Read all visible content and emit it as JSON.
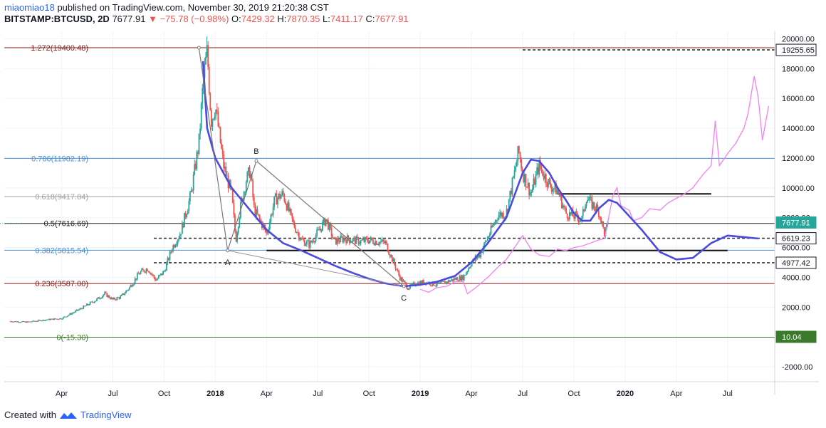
{
  "header": {
    "author": "miaomiao18",
    "published": "published on TradingView.com, November 30, 2019 21:20:38 CST",
    "symbol": "BITSTAMP:BTCUSD, 2D",
    "last": "7677.91",
    "change": "−75.78 (−0.98%)",
    "open_label": "O:",
    "open": "7429.32",
    "high_label": "H:",
    "high": "7870.35",
    "low_label": "L:",
    "low": "7411.17",
    "close_label": "C:",
    "close": "7677.91"
  },
  "footer": {
    "created_with": "Created with",
    "brand": "TradingView"
  },
  "colors": {
    "up": "#26a69a",
    "down": "#ef5350",
    "ma": "#4a4adf",
    "fractal": "#f77ff0",
    "fib_1272": "#8b1a1a",
    "fib_0786": "#4a90d9",
    "fib_0618": "#a0a0a0",
    "fib_05": "#222222",
    "fib_0382": "#4a90d9",
    "fib_0236": "#8b1a1a",
    "fib_0": "#3b7a2a"
  },
  "chart_data": {
    "type": "line",
    "title": "",
    "xlabel": "",
    "ylabel": "",
    "ylim": [
      -3000,
      20500
    ],
    "y_ticks": [
      -2000,
      2000,
      4000,
      6000,
      8000,
      10000,
      12000,
      14000,
      16000,
      18000,
      20000
    ],
    "y_tick_labels": [
      "-2000.00",
      "2000.00",
      "4000.00",
      "6000.00",
      "8000.00",
      "10000.00",
      "12000.00",
      "14000.00",
      "16000.00",
      "18000.00",
      "20000.00"
    ],
    "x_ticks": [
      {
        "label": "Apr",
        "t": 2017.25,
        "bold": false
      },
      {
        "label": "Jul",
        "t": 2017.5,
        "bold": false
      },
      {
        "label": "Oct",
        "t": 2017.75,
        "bold": false
      },
      {
        "label": "2018",
        "t": 2018.0,
        "bold": true
      },
      {
        "label": "Apr",
        "t": 2018.25,
        "bold": false
      },
      {
        "label": "Jul",
        "t": 2018.5,
        "bold": false
      },
      {
        "label": "Oct",
        "t": 2018.75,
        "bold": false
      },
      {
        "label": "2019",
        "t": 2019.0,
        "bold": true
      },
      {
        "label": "Apr",
        "t": 2019.25,
        "bold": false
      },
      {
        "label": "Jul",
        "t": 2019.5,
        "bold": false
      },
      {
        "label": "Oct",
        "t": 2019.75,
        "bold": false
      },
      {
        "label": "2020",
        "t": 2020.0,
        "bold": true
      },
      {
        "label": "Apr",
        "t": 2020.25,
        "bold": false
      },
      {
        "label": "Jul",
        "t": 2020.5,
        "bold": false
      }
    ],
    "price_series": [
      [
        2017.0,
        1050
      ],
      [
        2017.08,
        1000
      ],
      [
        2017.17,
        1150
      ],
      [
        2017.25,
        1250
      ],
      [
        2017.33,
        1800
      ],
      [
        2017.42,
        2500
      ],
      [
        2017.46,
        2900
      ],
      [
        2017.5,
        2500
      ],
      [
        2017.54,
        2700
      ],
      [
        2017.58,
        3300
      ],
      [
        2017.63,
        4300
      ],
      [
        2017.67,
        4600
      ],
      [
        2017.71,
        3800
      ],
      [
        2017.75,
        4400
      ],
      [
        2017.79,
        6000
      ],
      [
        2017.83,
        7000
      ],
      [
        2017.88,
        9500
      ],
      [
        2017.92,
        13000
      ],
      [
        2017.94,
        17000
      ],
      [
        2017.96,
        19200
      ],
      [
        2017.98,
        14500
      ],
      [
        2018.0,
        15500
      ],
      [
        2018.04,
        11500
      ],
      [
        2018.08,
        9500
      ],
      [
        2018.1,
        6500
      ],
      [
        2018.12,
        8500
      ],
      [
        2018.15,
        10500
      ],
      [
        2018.17,
        11200
      ],
      [
        2018.19,
        8500
      ],
      [
        2018.23,
        7500
      ],
      [
        2018.25,
        6900
      ],
      [
        2018.29,
        9200
      ],
      [
        2018.33,
        9600
      ],
      [
        2018.38,
        7600
      ],
      [
        2018.42,
        6500
      ],
      [
        2018.46,
        6200
      ],
      [
        2018.5,
        7000
      ],
      [
        2018.54,
        7900
      ],
      [
        2018.58,
        6400
      ],
      [
        2018.63,
        6600
      ],
      [
        2018.67,
        6500
      ],
      [
        2018.71,
        6400
      ],
      [
        2018.75,
        6500
      ],
      [
        2018.79,
        6400
      ],
      [
        2018.83,
        6300
      ],
      [
        2018.87,
        5000
      ],
      [
        2018.9,
        4000
      ],
      [
        2018.94,
        3300
      ],
      [
        2018.98,
        3600
      ],
      [
        2019.02,
        3700
      ],
      [
        2019.08,
        3500
      ],
      [
        2019.13,
        3700
      ],
      [
        2019.17,
        3900
      ],
      [
        2019.21,
        4000
      ],
      [
        2019.25,
        5000
      ],
      [
        2019.29,
        5500
      ],
      [
        2019.33,
        6700
      ],
      [
        2019.38,
        8200
      ],
      [
        2019.42,
        8300
      ],
      [
        2019.46,
        11000
      ],
      [
        2019.48,
        12500
      ],
      [
        2019.5,
        11000
      ],
      [
        2019.54,
        9600
      ],
      [
        2019.58,
        11500
      ],
      [
        2019.63,
        10200
      ],
      [
        2019.67,
        9800
      ],
      [
        2019.71,
        8300
      ],
      [
        2019.75,
        8100
      ],
      [
        2019.79,
        7900
      ],
      [
        2019.81,
        9400
      ],
      [
        2019.83,
        9000
      ],
      [
        2019.87,
        8500
      ],
      [
        2019.9,
        6900
      ],
      [
        2019.92,
        7677
      ]
    ],
    "ma_series": [
      [
        2017.94,
        18500
      ],
      [
        2017.96,
        14000
      ],
      [
        2018.0,
        12000
      ],
      [
        2018.08,
        10000
      ],
      [
        2018.17,
        8500
      ],
      [
        2018.25,
        7200
      ],
      [
        2018.33,
        6300
      ],
      [
        2018.42,
        5800
      ],
      [
        2018.5,
        5300
      ],
      [
        2018.58,
        4800
      ],
      [
        2018.67,
        4300
      ],
      [
        2018.75,
        3900
      ],
      [
        2018.83,
        3600
      ],
      [
        2018.92,
        3400
      ],
      [
        2019.0,
        3500
      ],
      [
        2019.08,
        3700
      ],
      [
        2019.17,
        4100
      ],
      [
        2019.25,
        5000
      ],
      [
        2019.33,
        6300
      ],
      [
        2019.42,
        8000
      ],
      [
        2019.5,
        11000
      ],
      [
        2019.54,
        11900
      ],
      [
        2019.58,
        11800
      ],
      [
        2019.63,
        11000
      ],
      [
        2019.67,
        10000
      ],
      [
        2019.71,
        9200
      ],
      [
        2019.75,
        8300
      ],
      [
        2019.79,
        7800
      ],
      [
        2019.83,
        7800
      ],
      [
        2019.87,
        8600
      ],
      [
        2019.92,
        9200
      ],
      [
        2019.96,
        9000
      ],
      [
        2020.0,
        8400
      ],
      [
        2020.08,
        7200
      ],
      [
        2020.17,
        5700
      ],
      [
        2020.25,
        5200
      ],
      [
        2020.33,
        5300
      ],
      [
        2020.42,
        6300
      ],
      [
        2020.5,
        6800
      ],
      [
        2020.58,
        6700
      ],
      [
        2020.65,
        6600
      ]
    ],
    "fractal_series": [
      [
        2019.0,
        3200
      ],
      [
        2019.04,
        3000
      ],
      [
        2019.08,
        3300
      ],
      [
        2019.13,
        3400
      ],
      [
        2019.17,
        3700
      ],
      [
        2019.21,
        3700
      ],
      [
        2019.23,
        2900
      ],
      [
        2019.27,
        3300
      ],
      [
        2019.33,
        4000
      ],
      [
        2019.38,
        4700
      ],
      [
        2019.42,
        5200
      ],
      [
        2019.46,
        6000
      ],
      [
        2019.5,
        6800
      ],
      [
        2019.54,
        5900
      ],
      [
        2019.58,
        5500
      ],
      [
        2019.63,
        5400
      ],
      [
        2019.67,
        5900
      ],
      [
        2019.71,
        5800
      ],
      [
        2019.75,
        6000
      ],
      [
        2019.79,
        6100
      ],
      [
        2019.83,
        6300
      ],
      [
        2019.87,
        6500
      ],
      [
        2019.9,
        6600
      ],
      [
        2019.94,
        9500
      ],
      [
        2019.96,
        10000
      ],
      [
        2019.98,
        8800
      ],
      [
        2020.02,
        8500
      ],
      [
        2020.04,
        7800
      ],
      [
        2020.08,
        8000
      ],
      [
        2020.12,
        8600
      ],
      [
        2020.17,
        8500
      ],
      [
        2020.21,
        9000
      ],
      [
        2020.25,
        9300
      ],
      [
        2020.29,
        9600
      ],
      [
        2020.33,
        10000
      ],
      [
        2020.38,
        10900
      ],
      [
        2020.42,
        11500
      ],
      [
        2020.44,
        14500
      ],
      [
        2020.46,
        11500
      ],
      [
        2020.5,
        12300
      ],
      [
        2020.54,
        13000
      ],
      [
        2020.58,
        14000
      ],
      [
        2020.6,
        15000
      ],
      [
        2020.63,
        17500
      ],
      [
        2020.65,
        16000
      ],
      [
        2020.67,
        13200
      ],
      [
        2020.7,
        15500
      ]
    ],
    "fib_levels": [
      {
        "label": "1.272(19400.48)",
        "value": 19400.48,
        "color": "#8b1a1a"
      },
      {
        "label": "0.786(11982.19)",
        "value": 11982.19,
        "color": "#4a90d9"
      },
      {
        "label": "0.618(9417.84)",
        "value": 9417.84,
        "color": "#a0a0a0"
      },
      {
        "label": "0.5(7616.69)",
        "value": 7616.69,
        "color": "#222222"
      },
      {
        "label": "0.382(5815.54)",
        "value": 5815.54,
        "color": "#4a90d9"
      },
      {
        "label": "0.236(3587.00)",
        "value": 3587.0,
        "color": "#8b1a1a"
      },
      {
        "label": "0(-15.30)",
        "value": -15.3,
        "color": "#3b7a2a"
      }
    ],
    "dashed_lines": [
      {
        "value": 19255.65,
        "t0": 2019.5,
        "t1": 2020.7
      },
      {
        "value": 6619.23,
        "t0": 2017.7,
        "t1": 2020.7
      },
      {
        "value": 4977.42,
        "t0": 2017.7,
        "t1": 2020.7
      }
    ],
    "solid_hlines": [
      {
        "value": 5800,
        "t0": 2018.25,
        "t1": 2020.5
      },
      {
        "value": 9600,
        "t0": 2019.67,
        "t1": 2020.42
      }
    ],
    "pattern_points": [
      {
        "t": 2017.92,
        "v": 19400,
        "label": ""
      },
      {
        "t": 2018.06,
        "v": 5800,
        "label": "A"
      },
      {
        "t": 2018.2,
        "v": 11800,
        "label": "B"
      },
      {
        "t": 2018.92,
        "v": 3400,
        "label": "C"
      }
    ],
    "price_tags": [
      {
        "label": "19255.65",
        "value": 19255.65,
        "bg": "#ffffff",
        "fg": "#131722",
        "border": "#131722"
      },
      {
        "label": "7677.91",
        "value": 7677.91,
        "bg": "#26a69a",
        "fg": "#ffffff",
        "border": "#26a69a"
      },
      {
        "label": "6619.23",
        "value": 6619.23,
        "bg": "#ffffff",
        "fg": "#131722",
        "border": "#131722"
      },
      {
        "label": "4977.42",
        "value": 4977.42,
        "bg": "#ffffff",
        "fg": "#131722",
        "border": "#131722"
      },
      {
        "label": "10.04",
        "value": 10.04,
        "bg": "#3b7a2a",
        "fg": "#ffffff",
        "border": "#3b7a2a"
      }
    ]
  }
}
